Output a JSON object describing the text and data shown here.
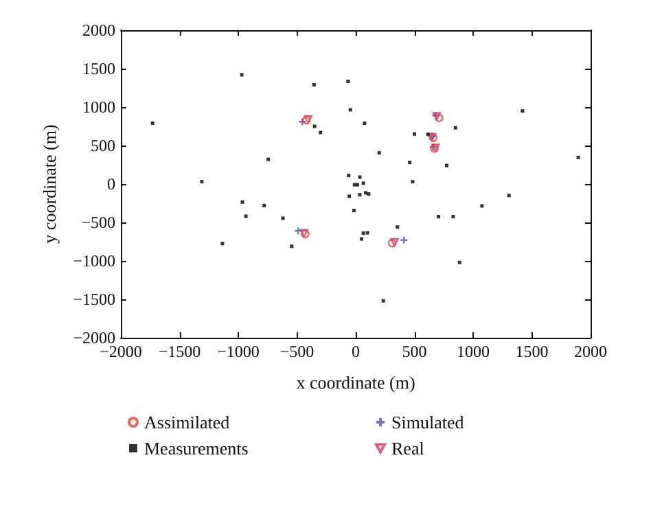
{
  "chart_data": {
    "type": "scatter",
    "xlabel": "x coordinate (m)",
    "ylabel": "y coordinate (m)",
    "xlim": [
      -2000,
      2000
    ],
    "ylim": [
      -2000,
      2000
    ],
    "xticks": [
      -2000,
      -1500,
      -1000,
      -500,
      0,
      500,
      1000,
      1500,
      2000
    ],
    "yticks": [
      -2000,
      -1500,
      -1000,
      -500,
      0,
      500,
      1000,
      1500,
      2000
    ],
    "grid": false,
    "legend": "bottom",
    "series": [
      {
        "name": "Assimilated",
        "color": "#e8423c",
        "marker": "circle",
        "x": [
          -420,
          710,
          660,
          670,
          -430,
          310
        ],
        "values": [
          830,
          860,
          600,
          460,
          -650,
          -770
        ]
      },
      {
        "name": "Measurements",
        "color": "#000000",
        "marker": "square",
        "x": [
          -1730,
          -970,
          -355,
          -350,
          -300,
          -745,
          -1310,
          -65,
          -45,
          75,
          1420,
          500,
          615,
          850,
          200,
          460,
          775,
          1895,
          -60,
          35,
          -10,
          15,
          65,
          485,
          -965,
          -935,
          -780,
          -620,
          -1135,
          -545,
          -55,
          35,
          85,
          110,
          -15,
          1305,
          1075,
          705,
          830,
          355,
          65,
          100,
          50,
          885,
          235
        ],
        "values": [
          790,
          1420,
          1290,
          750,
          670,
          320,
          30,
          1335,
          965,
          790,
          950,
          650,
          645,
          730,
          405,
          280,
          240,
          345,
          110,
          90,
          -10,
          -10,
          10,
          30,
          -235,
          -420,
          -280,
          -445,
          -775,
          -810,
          -160,
          -140,
          -115,
          -130,
          -345,
          -150,
          -285,
          -425,
          -425,
          -560,
          -640,
          -635,
          -715,
          -1020,
          -1520
        ]
      },
      {
        "name": "Simulated",
        "color": "#5a4fa0",
        "marker": "cross",
        "x": [
          -455,
          680,
          650,
          660,
          -490,
          410
        ],
        "values": [
          810,
          890,
          620,
          480,
          -610,
          -730
        ]
      },
      {
        "name": "Real",
        "color": "#d6336c",
        "marker": "triangle",
        "x": [
          -405,
          690,
          650,
          680,
          -440,
          330
        ],
        "values": [
          840,
          880,
          610,
          470,
          -640,
          -760
        ]
      }
    ]
  }
}
